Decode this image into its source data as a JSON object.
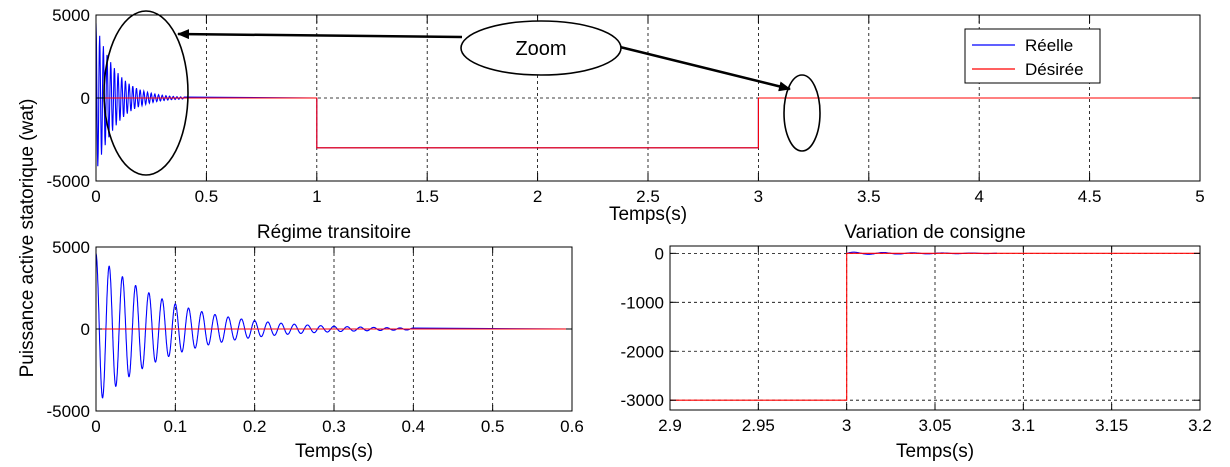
{
  "ylabel": "Puissance active statorique (wat)",
  "legend": {
    "position": "top-right",
    "entries": [
      {
        "label": "Réelle",
        "color": "#0000ff"
      },
      {
        "label": "Désirée",
        "color": "#ff0000"
      }
    ]
  },
  "annotation": {
    "label": "Zoom",
    "targets": [
      "top-chart-transient-region",
      "top-chart-step-at-3s"
    ]
  },
  "chart_data": [
    {
      "id": "main",
      "type": "line",
      "title": "",
      "xlabel": "Temps(s)",
      "ylabel": "",
      "xlim": [
        0,
        5
      ],
      "ylim": [
        -5000,
        5000
      ],
      "xticks": [
        0,
        0.5,
        1,
        1.5,
        2,
        2.5,
        3,
        3.5,
        4,
        4.5,
        5
      ],
      "xtick_labels": [
        "0",
        "0.5",
        "1",
        "1.5",
        "2",
        "2.5",
        "3",
        "3.5",
        "4",
        "4.5",
        "5"
      ],
      "yticks": [
        -5000,
        0,
        5000
      ],
      "ytick_labels": [
        "-5000",
        "0",
        "5000"
      ],
      "grid": true,
      "series": [
        {
          "name": "Réelle",
          "color": "#0000ff",
          "kind": "damped-oscillation",
          "amplitude": 4500,
          "frequency": 60,
          "decay": 11,
          "settle_x": 0.4,
          "steps": [
            {
              "x": 1,
              "y": -3000
            },
            {
              "x": 3,
              "y": 0
            }
          ]
        },
        {
          "name": "Désirée",
          "color": "#ff0000",
          "x": [
            0,
            1,
            1,
            3,
            3,
            5
          ],
          "y": [
            0,
            0,
            -3000,
            -3000,
            0,
            0
          ]
        }
      ]
    },
    {
      "id": "transient",
      "type": "line",
      "title": "Régime transitoire",
      "xlabel": "Temps(s)",
      "ylabel": "",
      "xlim": [
        0,
        0.6
      ],
      "ylim": [
        -5000,
        5000
      ],
      "xticks": [
        0,
        0.1,
        0.2,
        0.3,
        0.4,
        0.5,
        0.6
      ],
      "xtick_labels": [
        "0",
        "0.1",
        "0.2",
        "0.3",
        "0.4",
        "0.5",
        "0.6"
      ],
      "yticks": [
        -5000,
        0,
        5000
      ],
      "ytick_labels": [
        "-5000",
        "0",
        "5000"
      ],
      "grid": true,
      "series": [
        {
          "name": "Réelle",
          "color": "#0000ff",
          "kind": "damped-oscillation",
          "amplitude": 4600,
          "frequency": 60,
          "decay": 11,
          "settle_x": 0.4
        },
        {
          "name": "Désirée",
          "color": "#ff0000",
          "x": [
            0,
            0.6
          ],
          "y": [
            0,
            0
          ]
        }
      ]
    },
    {
      "id": "setpoint",
      "type": "line",
      "title": "Variation de consigne",
      "xlabel": "Temps(s)",
      "ylabel": "",
      "xlim": [
        2.9,
        3.2
      ],
      "ylim": [
        -3200,
        150
      ],
      "xticks": [
        2.9,
        2.95,
        3,
        3.05,
        3.1,
        3.15,
        3.2
      ],
      "xtick_labels": [
        "2.9",
        "2.95",
        "3",
        "3.05",
        "3.1",
        "3.15",
        "3.2"
      ],
      "yticks": [
        -3000,
        -2000,
        -1000,
        0
      ],
      "ytick_labels": [
        "-3000",
        "-2000",
        "-1000",
        "0"
      ],
      "grid": true,
      "series": [
        {
          "name": "Réelle",
          "color": "#0000ff",
          "kind": "ripple",
          "x_start": 3.0,
          "x_end": 3.085,
          "amplitude": 25,
          "frequency": 60
        },
        {
          "name": "Désirée",
          "color": "#ff0000",
          "x": [
            2.9,
            3.0,
            3.0,
            3.2
          ],
          "y": [
            -3000,
            -3000,
            0,
            0
          ]
        }
      ]
    }
  ]
}
